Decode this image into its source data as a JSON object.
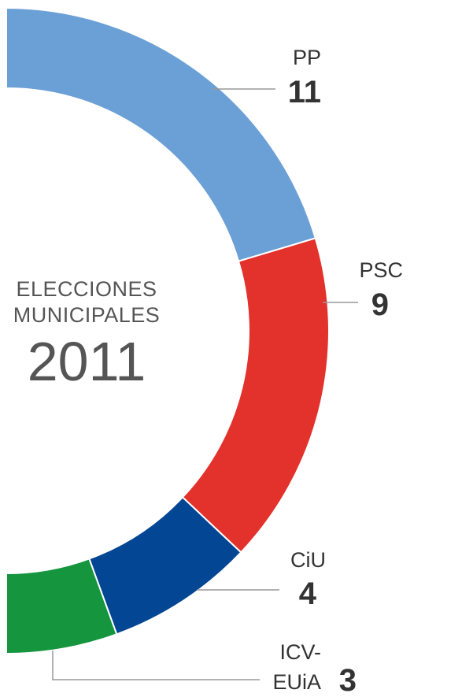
{
  "center_label": {
    "line1": "ELECCIONES",
    "line2": "MUNICIPALES",
    "year": "2011"
  },
  "chart_data": {
    "type": "pie",
    "variant": "semi-donut",
    "total_seats": 27,
    "slices": [
      {
        "name": "PP",
        "value": 11,
        "color": "#6ba0d6"
      },
      {
        "name": "PSC",
        "value": 9,
        "color": "#e3312b"
      },
      {
        "name": "CiU",
        "value": 4,
        "color": "#034693"
      },
      {
        "name": "ICV-EUiA",
        "value": 3,
        "color": "#14953e"
      }
    ],
    "labels": [
      {
        "name_lines": [
          "PP"
        ],
        "seats": "11"
      },
      {
        "name_lines": [
          "PSC"
        ],
        "seats": "9"
      },
      {
        "name_lines": [
          "CiU"
        ],
        "seats": "4"
      },
      {
        "name_lines": [
          "ICV-",
          "EUiA"
        ],
        "seats": "3"
      }
    ],
    "leader_line_color": "#999999"
  }
}
